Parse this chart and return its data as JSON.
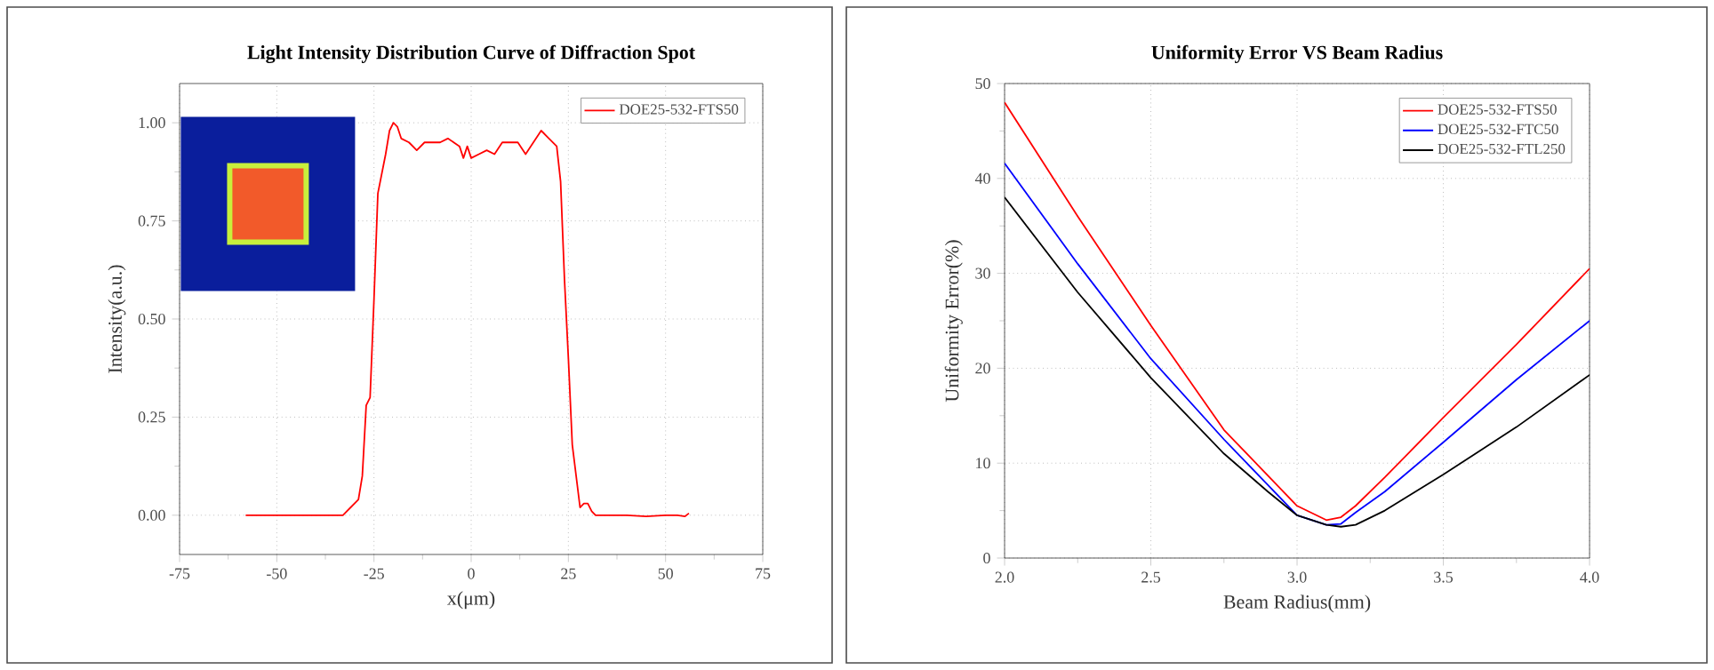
{
  "chart_data": [
    {
      "type": "line",
      "title": "Light Intensity Distribution Curve of Diffraction Spot",
      "xlabel": "x(μm)",
      "ylabel": "Intensity(a.u.)",
      "xlim": [
        -75,
        75
      ],
      "ylim": [
        -0.1,
        1.1
      ],
      "xticks": [
        -75,
        -50,
        -25,
        0,
        25,
        50,
        75
      ],
      "yticks": [
        {
          "value": 0,
          "label": "0.00"
        },
        {
          "value": 0.25,
          "label": "0.25"
        },
        {
          "value": 0.5,
          "label": "0.50"
        },
        {
          "value": 0.75,
          "label": "0.75"
        },
        {
          "value": 1,
          "label": "1.00"
        }
      ],
      "grid": true,
      "legend": "top right",
      "series": [
        {
          "name": "DOE25-532-FTS50",
          "color": "#ff0000",
          "x": [
            -58,
            -33,
            -31,
            -29,
            -28,
            -27,
            -26,
            -25,
            -24,
            -22,
            -21,
            -20,
            -19,
            -18,
            -16,
            -14,
            -12,
            -8,
            -6,
            -3,
            -2,
            -1,
            0,
            2,
            4,
            6,
            8,
            10,
            12,
            14,
            16,
            18,
            20,
            22,
            23,
            24,
            25,
            26,
            27,
            28,
            29,
            30,
            31,
            32,
            40,
            45,
            50,
            53,
            55,
            56
          ],
          "values": [
            0,
            0,
            0.02,
            0.04,
            0.1,
            0.28,
            0.3,
            0.55,
            0.82,
            0.92,
            0.98,
            1.0,
            0.99,
            0.96,
            0.95,
            0.93,
            0.95,
            0.95,
            0.96,
            0.94,
            0.91,
            0.94,
            0.91,
            0.92,
            0.93,
            0.92,
            0.95,
            0.95,
            0.95,
            0.92,
            0.95,
            0.98,
            0.96,
            0.94,
            0.85,
            0.6,
            0.4,
            0.18,
            0.1,
            0.02,
            0.03,
            0.03,
            0.01,
            0,
            0,
            -0.003,
            0,
            0,
            -0.003,
            0.005
          ]
        }
      ]
    },
    {
      "type": "line",
      "title": "Uniformity Error VS Beam Radius",
      "xlabel": "Beam Radius(mm)",
      "ylabel": "Uniformity Error(%)",
      "xlim": [
        2,
        4
      ],
      "ylim": [
        0,
        50
      ],
      "xticks": [
        {
          "value": 2,
          "label": "2.0"
        },
        {
          "value": 2.5,
          "label": "2.5"
        },
        {
          "value": 3,
          "label": "3.0"
        },
        {
          "value": 3.5,
          "label": "3.5"
        },
        {
          "value": 4,
          "label": "4.0"
        }
      ],
      "yticks": [
        0,
        10,
        20,
        30,
        40,
        50
      ],
      "grid": true,
      "legend": "top right",
      "series": [
        {
          "name": "DOE25-532-FTS50",
          "color": "#ff0000",
          "x": [
            2.0,
            2.25,
            2.5,
            2.75,
            3.0,
            3.1,
            3.15,
            3.2,
            3.3,
            3.5,
            3.75,
            4.0
          ],
          "values": [
            48,
            36,
            24.5,
            13.5,
            5.5,
            4,
            4.3,
            5.5,
            8.5,
            14.8,
            22.5,
            30.5
          ]
        },
        {
          "name": "DOE25-532-FTC50",
          "color": "#0000ff",
          "x": [
            2.0,
            2.25,
            2.5,
            2.75,
            3.0,
            3.1,
            3.15,
            3.2,
            3.3,
            3.5,
            3.75,
            4.0
          ],
          "values": [
            41.6,
            31,
            21,
            12.5,
            4.5,
            3.5,
            3.6,
            4.8,
            7,
            12.2,
            18.8,
            25
          ]
        },
        {
          "name": "DOE25-532-FTL250",
          "color": "#000000",
          "x": [
            2.0,
            2.25,
            2.5,
            2.75,
            2.9,
            3.0,
            3.1,
            3.15,
            3.2,
            3.3,
            3.5,
            3.75,
            4.0
          ],
          "values": [
            38,
            28,
            19,
            11,
            7,
            4.5,
            3.5,
            3.3,
            3.5,
            5,
            8.8,
            13.8,
            19.3
          ]
        }
      ]
    }
  ]
}
